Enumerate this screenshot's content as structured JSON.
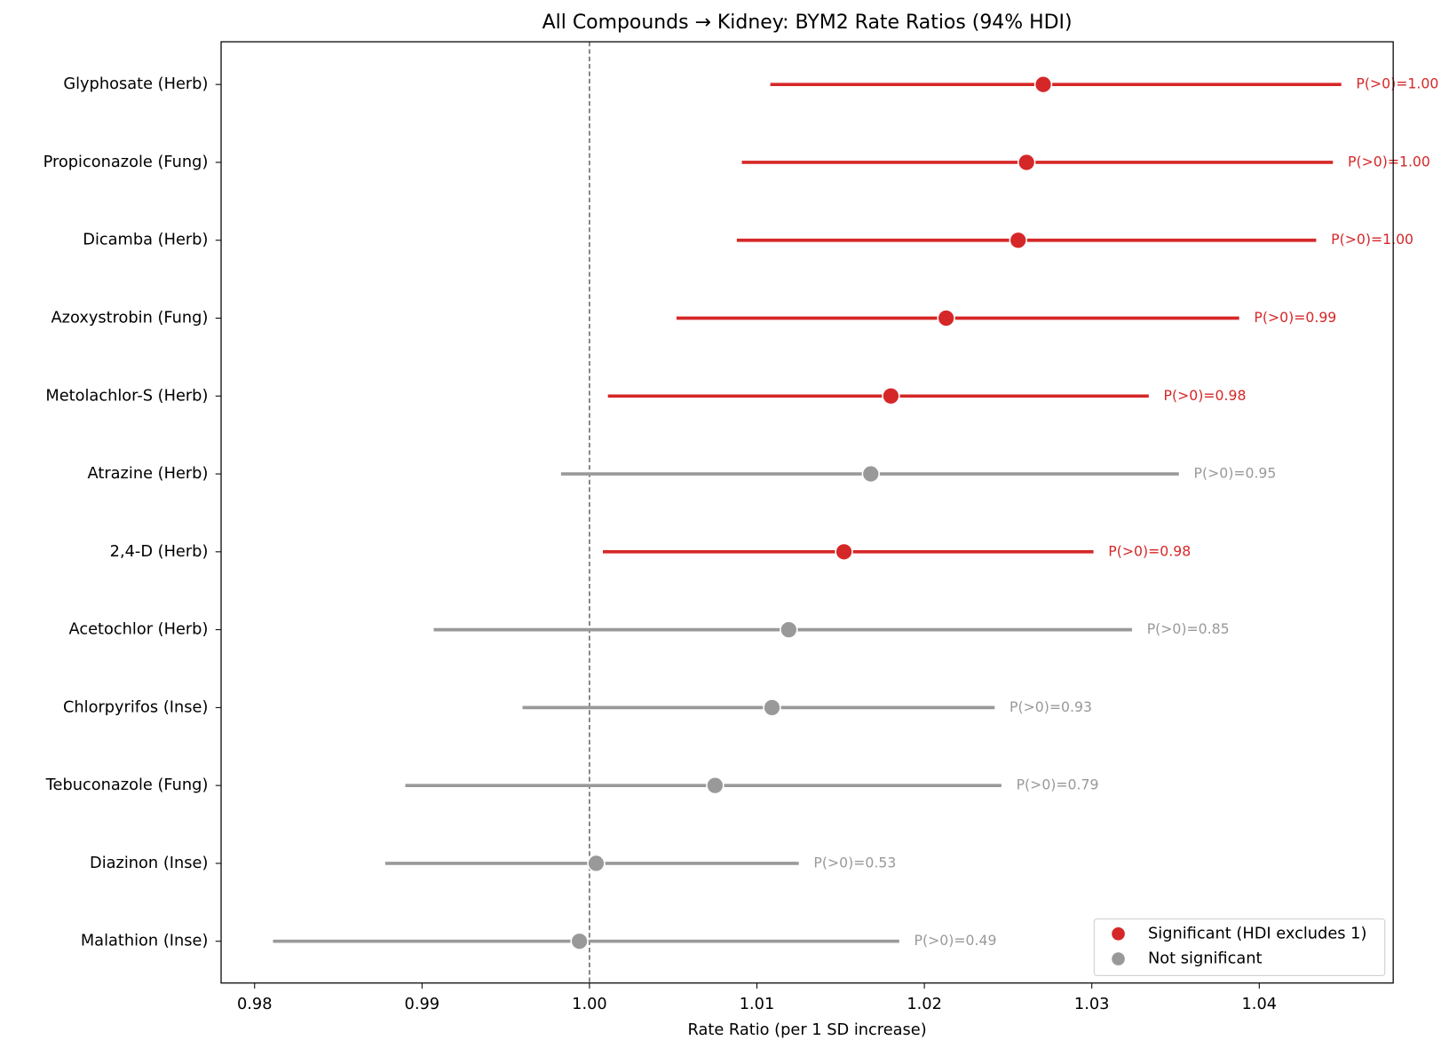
{
  "chart_data": {
    "type": "forest",
    "title": "All Compounds → Kidney: BYM2 Rate Ratios (94% HDI)",
    "xlabel": "Rate Ratio (per 1 SD increase)",
    "categories": [
      "Glyphosate (Herb)",
      "Propiconazole (Fung)",
      "Dicamba (Herb)",
      "Azoxystrobin (Fung)",
      "Metolachlor-S (Herb)",
      "Atrazine (Herb)",
      "2,4-D (Herb)",
      "Acetochlor (Herb)",
      "Chlorpyrifos (Inse)",
      "Tebuconazole (Fung)",
      "Diazinon (Inse)",
      "Malathion (Inse)"
    ],
    "values": [
      1.0271,
      1.0261,
      1.0256,
      1.0213,
      1.018,
      1.0168,
      1.0152,
      1.0119,
      1.0109,
      1.0075,
      1.0004,
      0.9994
    ],
    "lower": [
      1.0108,
      1.0091,
      1.0088,
      1.0052,
      1.0011,
      0.9983,
      1.0008,
      0.9907,
      0.996,
      0.989,
      0.9878,
      0.9811
    ],
    "upper": [
      1.0449,
      1.0444,
      1.0434,
      1.0388,
      1.0334,
      1.0352,
      1.0301,
      1.0324,
      1.0242,
      1.0246,
      1.0125,
      1.0185
    ],
    "annotations": [
      "P(>0)=1.00",
      "P(>0)=1.00",
      "P(>0)=1.00",
      "P(>0)=0.99",
      "P(>0)=0.98",
      "P(>0)=0.95",
      "P(>0)=0.98",
      "P(>0)=0.85",
      "P(>0)=0.93",
      "P(>0)=0.79",
      "P(>0)=0.53",
      "P(>0)=0.49"
    ],
    "groups": [
      0,
      0,
      0,
      0,
      0,
      1,
      0,
      1,
      1,
      1,
      1,
      1
    ],
    "legend": [
      {
        "label": "Significant (HDI excludes 1)",
        "color": "#d62728"
      },
      {
        "label": "Not significant",
        "color": "#999999"
      }
    ],
    "legend_position": "lower right",
    "reference_line": 1,
    "xlim": [
      0.978,
      1.048
    ],
    "xticks": [
      {
        "value": 0.98,
        "label": "0.98"
      },
      {
        "value": 0.99,
        "label": "0.99"
      },
      {
        "value": 1,
        "label": "1.00"
      },
      {
        "value": 1.01,
        "label": "1.01"
      },
      {
        "value": 1.02,
        "label": "1.02"
      },
      {
        "value": 1.03,
        "label": "1.03"
      },
      {
        "value": 1.04,
        "label": "1.04"
      }
    ]
  }
}
